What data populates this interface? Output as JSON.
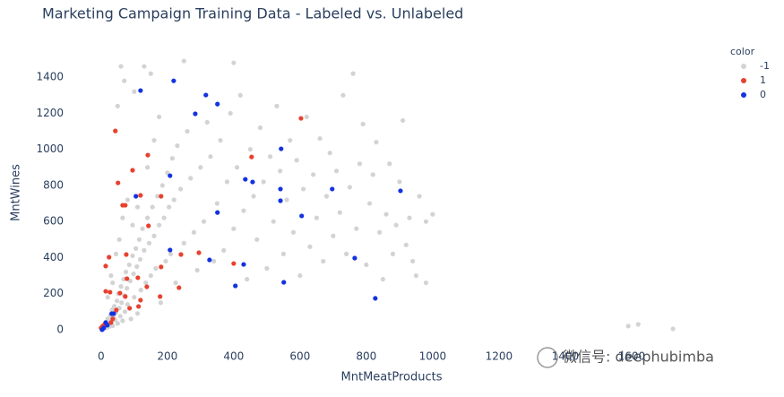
{
  "chart_data": {
    "type": "scatter",
    "title": "Marketing Campaign Training Data - Labeled vs. Unlabeled",
    "x_label": "MntMeatProducts",
    "y_label": "MntWines",
    "legend_title": "color",
    "legend_position": "top-right",
    "xlim": [
      -40,
      1830
    ],
    "ylim": [
      -60,
      1520
    ],
    "xticks": [
      0,
      200,
      400,
      600,
      800,
      1000,
      1200,
      1400,
      1600
    ],
    "yticks": [
      0,
      200,
      400,
      600,
      800,
      1000,
      1200,
      1400
    ],
    "grid": false,
    "watermark": "微信号: deephubimba",
    "series": [
      {
        "name": "-1",
        "color": "#d3d3d3",
        "x": [
          2,
          5,
          8,
          10,
          12,
          15,
          18,
          20,
          22,
          25,
          28,
          30,
          33,
          35,
          38,
          40,
          42,
          45,
          48,
          50,
          52,
          55,
          58,
          60,
          62,
          65,
          68,
          70,
          72,
          75,
          78,
          80,
          85,
          88,
          90,
          95,
          98,
          100,
          105,
          108,
          110,
          115,
          118,
          120,
          125,
          130,
          135,
          140,
          145,
          150,
          155,
          160,
          165,
          170,
          175,
          180,
          185,
          190,
          195,
          200,
          205,
          210,
          215,
          220,
          225,
          230,
          240,
          250,
          260,
          270,
          280,
          290,
          300,
          310,
          320,
          330,
          340,
          350,
          360,
          370,
          380,
          390,
          400,
          410,
          420,
          430,
          440,
          450,
          460,
          470,
          480,
          490,
          500,
          510,
          520,
          530,
          540,
          550,
          560,
          570,
          580,
          590,
          600,
          610,
          620,
          630,
          640,
          650,
          660,
          670,
          680,
          690,
          700,
          710,
          720,
          730,
          740,
          750,
          760,
          770,
          780,
          790,
          800,
          810,
          820,
          830,
          840,
          850,
          860,
          870,
          880,
          890,
          900,
          910,
          920,
          930,
          940,
          950,
          960,
          980,
          1000,
          980,
          60,
          130,
          250,
          400,
          50,
          70,
          150,
          100,
          30,
          45,
          20,
          55,
          65,
          80,
          35,
          110,
          95,
          140,
          160,
          175,
          1590,
          1620,
          1725
        ],
        "values": [
          5,
          15,
          3,
          25,
          8,
          40,
          12,
          60,
          30,
          18,
          80,
          45,
          110,
          22,
          70,
          130,
          55,
          95,
          160,
          35,
          200,
          120,
          75,
          240,
          150,
          50,
          280,
          190,
          100,
          320,
          230,
          140,
          360,
          270,
          60,
          410,
          310,
          180,
          450,
          350,
          90,
          500,
          390,
          220,
          560,
          440,
          260,
          620,
          480,
          300,
          680,
          520,
          340,
          740,
          580,
          150,
          800,
          620,
          380,
          870,
          680,
          420,
          950,
          720,
          260,
          1020,
          780,
          480,
          1100,
          840,
          540,
          330,
          900,
          600,
          1150,
          960,
          380,
          700,
          1050,
          440,
          820,
          1200,
          560,
          900,
          1300,
          660,
          280,
          1000,
          740,
          500,
          1120,
          820,
          340,
          960,
          600,
          1240,
          880,
          420,
          720,
          1050,
          540,
          940,
          300,
          780,
          1180,
          460,
          860,
          620,
          1060,
          380,
          740,
          980,
          520,
          880,
          650,
          1300,
          420,
          790,
          1420,
          560,
          920,
          1140,
          360,
          700,
          860,
          1040,
          540,
          280,
          640,
          920,
          420,
          580,
          820,
          1160,
          470,
          620,
          380,
          300,
          740,
          260,
          640,
          600,
          1460,
          1460,
          1490,
          1480,
          1240,
          1380,
          1420,
          1320,
          300,
          420,
          180,
          500,
          620,
          720,
          260,
          680,
          580,
          900,
          1050,
          1180,
          20,
          30,
          5
        ]
      },
      {
        "name": "1",
        "color": "#e8412f",
        "x": [
          43,
          603,
          454,
          141,
          95,
          51,
          65,
          73,
          119,
          181,
          143,
          295,
          241,
          400,
          181,
          76,
          24,
          14,
          111,
          78,
          138,
          235,
          27,
          14,
          57,
          178,
          73,
          119,
          113,
          86,
          46,
          35,
          30,
          11,
          5,
          0
        ],
        "values": [
          1102,
          1172,
          958,
          968,
          884,
          814,
          690,
          690,
          745,
          740,
          576,
          427,
          417,
          367,
          348,
          417,
          402,
          353,
          288,
          283,
          238,
          233,
          208,
          213,
          203,
          184,
          184,
          164,
          129,
          119,
          109,
          60,
          40,
          30,
          20,
          10
        ]
      },
      {
        "name": "0",
        "color": "#1432e0",
        "x": [
          119,
          219,
          316,
          351,
          284,
          543,
          435,
          457,
          208,
          105,
          541,
          697,
          903,
          351,
          541,
          605,
          208,
          327,
          765,
          430,
          405,
          551,
          827,
          38,
          32,
          14,
          8,
          3,
          19
        ],
        "values": [
          1326,
          1380,
          1301,
          1251,
          1197,
          1003,
          834,
          819,
          854,
          740,
          780,
          780,
          770,
          650,
          715,
          631,
          442,
          387,
          397,
          362,
          243,
          263,
          174,
          89,
          89,
          40,
          10,
          0,
          25
        ]
      }
    ]
  }
}
